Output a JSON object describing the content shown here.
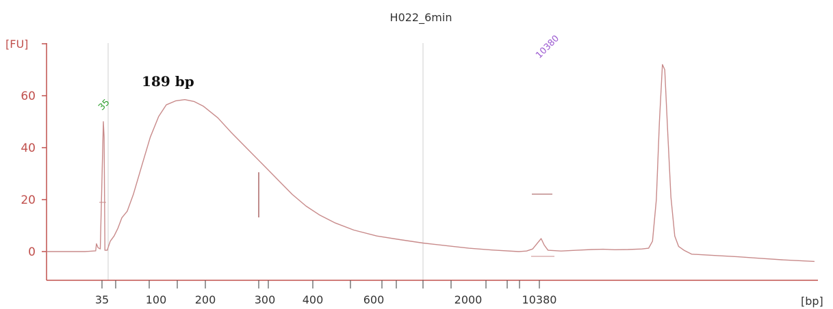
{
  "chart_data": {
    "type": "line",
    "title": "H022_6min",
    "ylabel": "[FU]",
    "xlabel": "[bp]",
    "ylim": [
      -10,
      80
    ],
    "y_ticks": [
      0,
      20,
      40,
      60
    ],
    "x_tick_labels": [
      "35",
      "100",
      "200",
      "300",
      "400",
      "600",
      "2000",
      "10380"
    ],
    "annotation": "189 bp",
    "markers": [
      {
        "label": "35",
        "color": "#2e9e2e"
      },
      {
        "label": "10380",
        "color": "#9b59d0"
      }
    ],
    "series": [
      {
        "color": "#c88a8a",
        "x_unit": "relative run position (0 = left axis, 100 = right end)",
        "points": [
          [
            0.0,
            0.0
          ],
          [
            5.0,
            0.0
          ],
          [
            6.4,
            0.3
          ],
          [
            6.5,
            3.0
          ],
          [
            6.7,
            1.5
          ],
          [
            7.0,
            1.0
          ],
          [
            7.4,
            50.0
          ],
          [
            7.5,
            44.0
          ],
          [
            7.6,
            0.5
          ],
          [
            7.9,
            0.5
          ],
          [
            8.3,
            4.0
          ],
          [
            8.8,
            6.0
          ],
          [
            9.3,
            9.0
          ],
          [
            9.8,
            13.0
          ],
          [
            10.5,
            15.5
          ],
          [
            11.3,
            22.0
          ],
          [
            12.4,
            33.0
          ],
          [
            13.5,
            44.0
          ],
          [
            14.6,
            52.0
          ],
          [
            15.6,
            56.5
          ],
          [
            16.8,
            58.0
          ],
          [
            18.0,
            58.5
          ],
          [
            19.2,
            57.8
          ],
          [
            20.4,
            56.0
          ],
          [
            22.3,
            51.5
          ],
          [
            24.0,
            46.0
          ],
          [
            26.0,
            40.0
          ],
          [
            28.0,
            34.0
          ],
          [
            30.0,
            28.0
          ],
          [
            32.0,
            22.0
          ],
          [
            33.8,
            17.5
          ],
          [
            35.6,
            14.0
          ],
          [
            37.6,
            11.0
          ],
          [
            40.0,
            8.3
          ],
          [
            43.0,
            6.0
          ],
          [
            46.0,
            4.6
          ],
          [
            49.0,
            3.3
          ],
          [
            52.0,
            2.3
          ],
          [
            55.0,
            1.3
          ],
          [
            58.0,
            0.6
          ],
          [
            61.5,
            0.0
          ],
          [
            62.5,
            0.2
          ],
          [
            63.3,
            1.0
          ],
          [
            63.9,
            3.2
          ],
          [
            64.4,
            5.0
          ],
          [
            64.8,
            2.5
          ],
          [
            65.3,
            0.5
          ],
          [
            67.0,
            0.2
          ],
          [
            69.0,
            0.5
          ],
          [
            71.0,
            0.8
          ],
          [
            72.5,
            0.9
          ],
          [
            74.0,
            0.7
          ],
          [
            75.7,
            0.8
          ],
          [
            77.5,
            1.0
          ],
          [
            78.4,
            1.3
          ],
          [
            78.9,
            4.0
          ],
          [
            79.4,
            20.0
          ],
          [
            79.8,
            50.0
          ],
          [
            80.2,
            72.0
          ],
          [
            80.5,
            70.0
          ],
          [
            80.9,
            45.0
          ],
          [
            81.3,
            21.0
          ],
          [
            81.8,
            6.0
          ],
          [
            82.3,
            2.0
          ],
          [
            83.0,
            0.5
          ],
          [
            84.0,
            -1.0
          ],
          [
            87.0,
            -1.5
          ],
          [
            90.0,
            -2.0
          ],
          [
            93.0,
            -2.6
          ],
          [
            96.0,
            -3.2
          ],
          [
            100.0,
            -3.8
          ]
        ]
      }
    ]
  }
}
